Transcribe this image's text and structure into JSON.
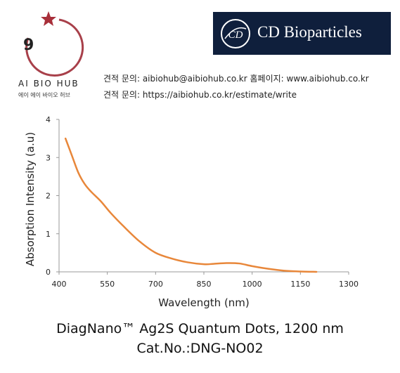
{
  "logo": {
    "number": "9",
    "name": "AI BIO HUB",
    "subtitle": "에이 에이 바이오 허브",
    "ring_color": "#a8404a",
    "star_color": "#a82f3a"
  },
  "brand": {
    "name": "CD Bioparticles",
    "emblem_text": "CD",
    "box_color": "#0f1f3c"
  },
  "contact": {
    "line1": "견적 문의: aibiohub@aibiohub.co.kr   홈페이지: www.aibiohub.co.kr",
    "line2": "견적 문의: https://aibiohub.co.kr/estimate/write"
  },
  "chart_data": {
    "type": "line",
    "title": "",
    "xlabel": "Wavelength (nm)",
    "ylabel": "Absorption Intensity (a.u)",
    "xlim": [
      400,
      1300
    ],
    "ylim": [
      0,
      4
    ],
    "xticks": [
      400,
      550,
      700,
      850,
      1000,
      1150,
      1300
    ],
    "yticks": [
      0,
      1,
      2,
      3,
      4
    ],
    "grid": false,
    "series": [
      {
        "color": "#e8873a",
        "x": [
          420,
          440,
          460,
          480,
          500,
          530,
          560,
          600,
          650,
          700,
          750,
          800,
          850,
          880,
          920,
          960,
          1000,
          1050,
          1100,
          1150,
          1200
        ],
        "y": [
          3.5,
          3.05,
          2.6,
          2.3,
          2.1,
          1.85,
          1.55,
          1.2,
          0.8,
          0.5,
          0.35,
          0.25,
          0.2,
          0.21,
          0.23,
          0.22,
          0.15,
          0.08,
          0.03,
          0.01,
          0.0
        ]
      }
    ]
  },
  "caption": {
    "line1": "DiagNano™ Ag2S Quantum Dots, 1200 nm",
    "line2": "Cat.No.:DNG-NO02"
  }
}
